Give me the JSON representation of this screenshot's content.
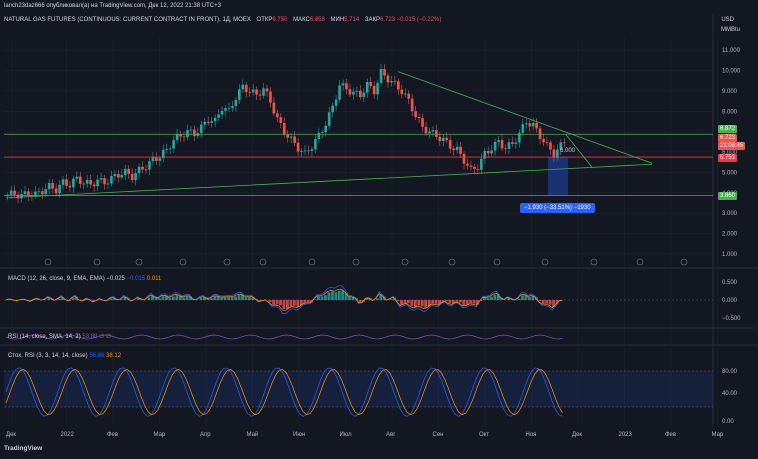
{
  "header": {
    "published": "lanch23daz666 опубликовал(а) на TradingView.com, Дек 12, 2022 21:38 UTC+3",
    "symbol": "NATURAL GAS FUTURES (CONTINUOUS: CURRENT CONTRACT IN FRONT), 1Д, MOEX",
    "o_label": "ОТКР",
    "o": "6.750",
    "h_label": "МАКС",
    "h": "6.858",
    "l_label": "МИН",
    "l": "5.714",
    "c_label": "ЗАКР",
    "c": "6.723",
    "chg": "−0.015 (−0.22%)",
    "currency": "USD",
    "unit": "MMBtu"
  },
  "colors": {
    "bg": "#131722",
    "up": "#26a69a",
    "down": "#ef5350",
    "green_line": "#4caf50",
    "red_line": "#f23645",
    "blue": "#2962ff",
    "orange": "#ff9800"
  },
  "price_tags": {
    "upper": "6.872",
    "last": "6.723",
    "countdown": "21:06:45",
    "red": "5.753",
    "lower": "3.860",
    "overlap": "6.000"
  },
  "measure_badge": "−1.930 (−33.51%) −1930",
  "macd": {
    "label": "MACD (12, 26, close, 9, EMA, EMA)",
    "v1": "−0.025",
    "v2": "−0.015",
    "v3": "0.011",
    "ticks": [
      "0.500",
      "0.000",
      "−0.500"
    ]
  },
  "rsi": {
    "label": "RSI (14, close, SMA, 14, 2)",
    "v": "53.88",
    "v2": "∅",
    "v3": "∅"
  },
  "stoch": {
    "label": "Стох. RSI (3, 3, 14, 14, close)",
    "k": "56.86",
    "d": "38.12",
    "ticks": [
      "80.00",
      "40.00",
      "0.00"
    ]
  },
  "brand": "TradingView",
  "chart_data": {
    "type": "candlestick",
    "y_ticks": [
      "11.000",
      "10.000",
      "9.000",
      "8.000",
      "7.000",
      "6.000",
      "5.000",
      "4.000",
      "3.000",
      "2.000",
      "1.000"
    ],
    "ylim": [
      0.6,
      11.6
    ],
    "x_labels": [
      "Дек",
      "2022",
      "Фев",
      "Мар",
      "Апр",
      "Май",
      "Июн",
      "Июл",
      "Авг",
      "Сен",
      "Окт",
      "Ноя",
      "Дек",
      "2023",
      "Фев",
      "Мар"
    ],
    "close_path": [
      3.9,
      3.95,
      3.85,
      4.0,
      3.9,
      4.1,
      4.3,
      4.15,
      4.5,
      4.4,
      4.7,
      4.5,
      4.4,
      4.6,
      4.5,
      4.7,
      4.9,
      5.0,
      4.8,
      5.1,
      5.3,
      5.6,
      5.8,
      6.1,
      6.6,
      6.8,
      7.0,
      6.9,
      7.2,
      7.6,
      7.5,
      8.2,
      8.0,
      8.7,
      9.2,
      9.0,
      8.8,
      9.1,
      8.5,
      7.6,
      7.0,
      6.6,
      6.2,
      5.9,
      6.3,
      6.8,
      7.4,
      8.2,
      9.3,
      9.1,
      8.9,
      8.8,
      9.3,
      9.0,
      9.9,
      9.6,
      9.3,
      9.0,
      8.5,
      7.8,
      7.2,
      7.0,
      6.8,
      6.6,
      6.3,
      6.1,
      5.6,
      5.1,
      5.3,
      5.9,
      6.2,
      6.5,
      6.2,
      6.4,
      6.9,
      7.5,
      7.3,
      6.8,
      6.3,
      5.9,
      6.3,
      6.72
    ]
  }
}
